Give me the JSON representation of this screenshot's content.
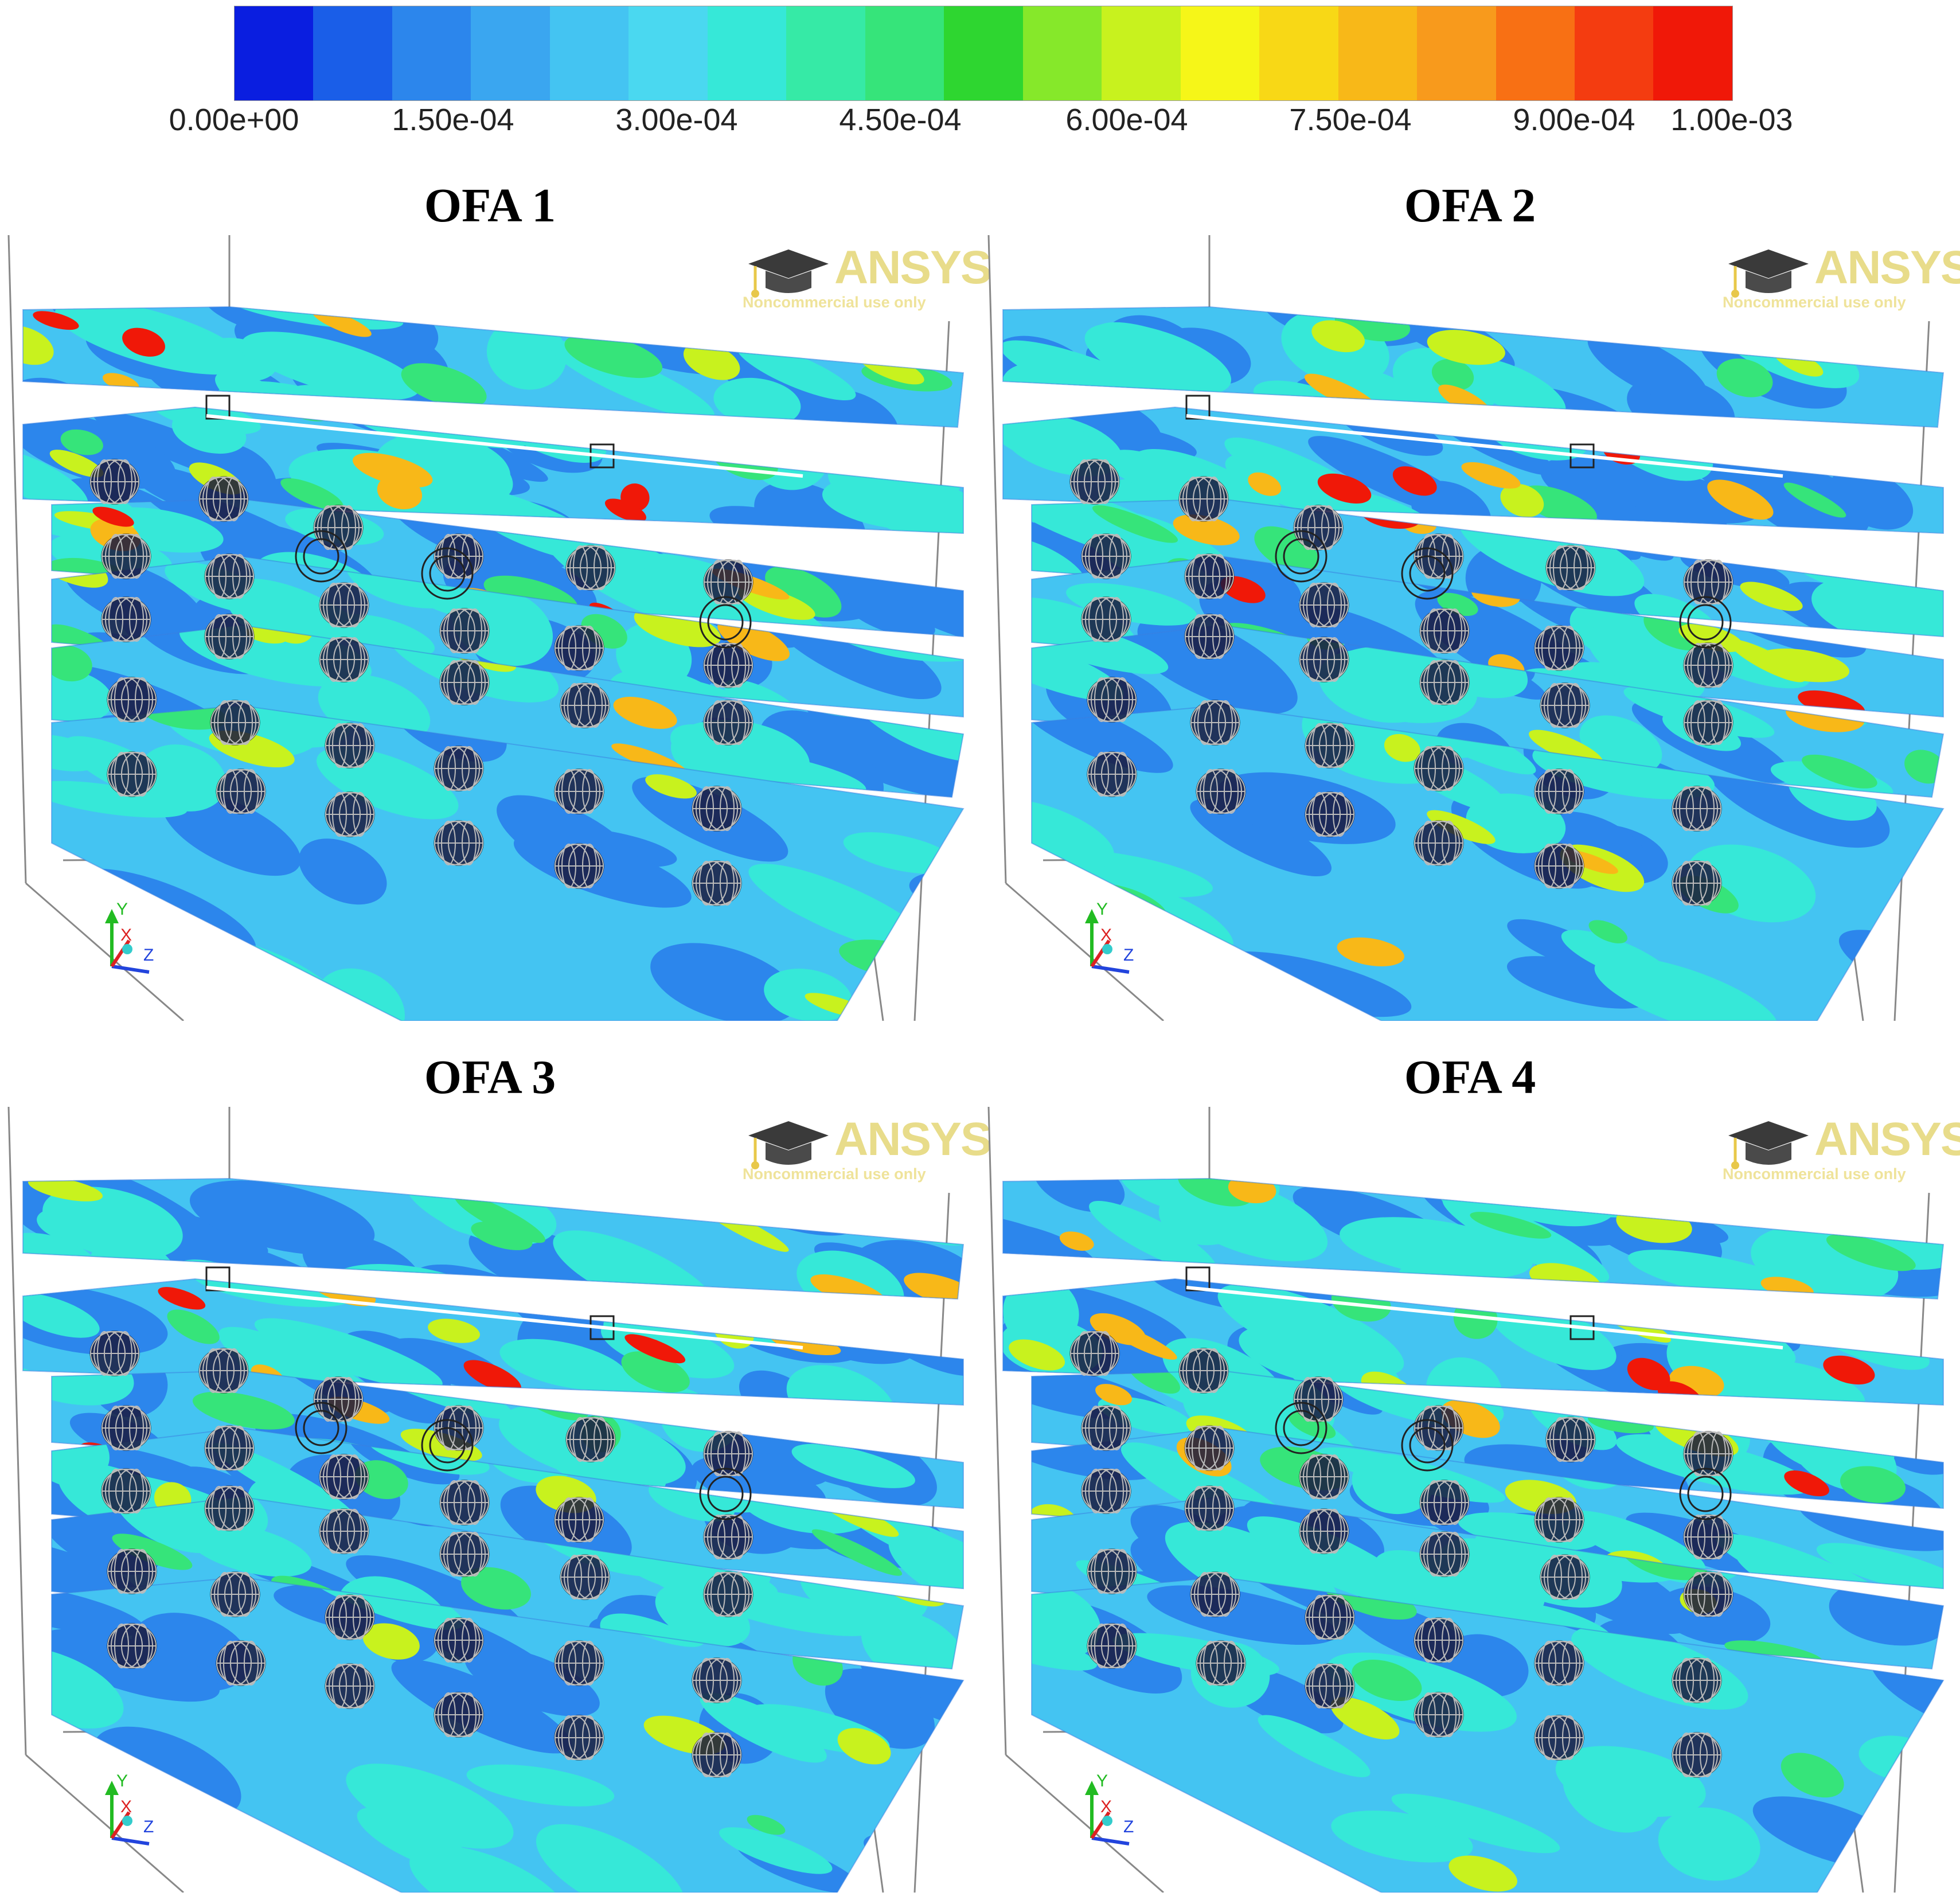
{
  "legend": {
    "colors": [
      "#0a1ee0",
      "#1a5ee8",
      "#2c86ec",
      "#3aa6f0",
      "#44c4f2",
      "#4ad8f0",
      "#36e8d8",
      "#36eaa6",
      "#36e47a",
      "#2ed630",
      "#86e82a",
      "#c8f21e",
      "#f6f618",
      "#f8d816",
      "#f8b818",
      "#f89a1c",
      "#f87014",
      "#f43c10",
      "#f01808"
    ],
    "tick_labels": [
      "0.00e+00",
      "1.50e-04",
      "3.00e-04",
      "4.50e-04",
      "6.00e-04",
      "7.50e-04",
      "9.00e-04",
      "1.00e-03"
    ]
  },
  "panels": [
    {
      "title": "OFA 1",
      "logo_word": "ANSYS",
      "logo_sub": "Noncommercial use only",
      "axis": {
        "y": "Y",
        "x": "X",
        "z": "Z"
      }
    },
    {
      "title": "OFA 2",
      "logo_word": "ANSYS",
      "logo_sub": "Noncommercial use only",
      "axis": {
        "y": "Y",
        "x": "X",
        "z": "Z"
      }
    },
    {
      "title": "OFA 3",
      "logo_word": "ANSYS",
      "logo_sub": "Noncommercial use only",
      "axis": {
        "y": "Y",
        "x": "X",
        "z": "Z"
      }
    },
    {
      "title": "OFA 4",
      "logo_word": "ANSYS",
      "logo_sub": "Noncommercial use only",
      "axis": {
        "y": "Y",
        "x": "X",
        "z": "Z"
      }
    }
  ]
}
